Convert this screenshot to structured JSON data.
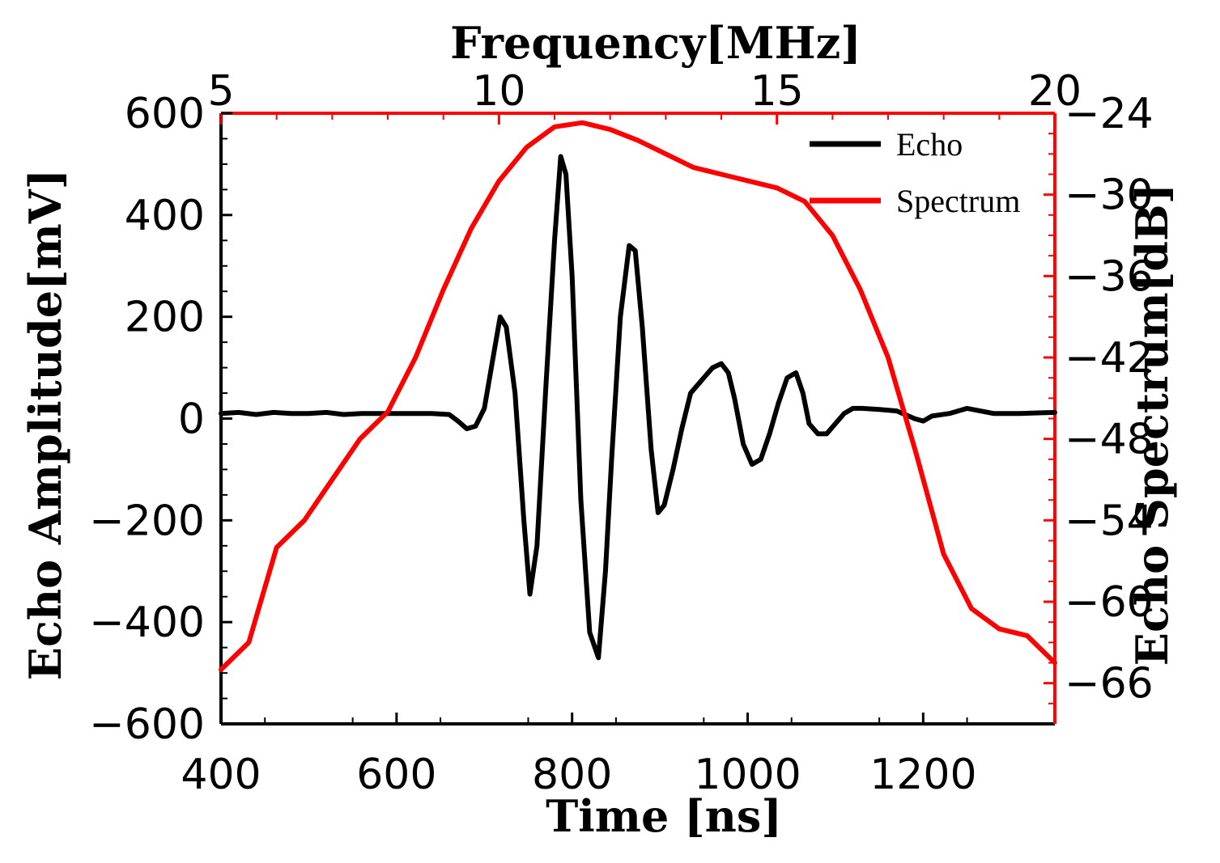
{
  "chart_data": {
    "type": "line",
    "title": "",
    "bottom_axis": {
      "label": "Time [ns]",
      "range": [
        400,
        1350
      ],
      "ticks": [
        400,
        600,
        800,
        1000,
        1200
      ],
      "tick_labels": [
        "400",
        "600",
        "800",
        "1000",
        "1200"
      ]
    },
    "top_axis": {
      "label": "Frequency[MHz]",
      "range": [
        5,
        20
      ],
      "ticks": [
        5,
        10,
        15,
        20
      ],
      "tick_labels": [
        "5",
        "10",
        "15",
        "20"
      ]
    },
    "left_axis": {
      "label": "Echo Amplitude[mV]",
      "range": [
        -600,
        600
      ],
      "ticks": [
        -600,
        -400,
        -200,
        0,
        200,
        400,
        600
      ],
      "tick_labels": [
        "−600",
        "−400",
        "−200",
        "0",
        "200",
        "400",
        "600"
      ]
    },
    "right_axis": {
      "label": "Echo Spectrum[dB]",
      "range": [
        -69,
        -24
      ],
      "ticks": [
        -24,
        -30,
        -36,
        -42,
        -48,
        -54,
        -60,
        -66
      ],
      "tick_labels": [
        "−24",
        "−30",
        "−36",
        "−42",
        "−48",
        "−54",
        "−60",
        "−66"
      ]
    },
    "legend": {
      "placement": "top-right",
      "entries": [
        {
          "name": "Echo",
          "color": "#000000"
        },
        {
          "name": "Spectrum",
          "color": "#ff0000"
        }
      ]
    },
    "series": [
      {
        "name": "Echo",
        "axes": "time-amplitude",
        "color": "#000000",
        "x": [
          400,
          420,
          440,
          460,
          480,
          500,
          520,
          540,
          560,
          580,
          600,
          620,
          640,
          660,
          670,
          680,
          690,
          700,
          710,
          718,
          725,
          735,
          745,
          752,
          760,
          770,
          780,
          787,
          793,
          800,
          810,
          820,
          830,
          838,
          845,
          855,
          865,
          872,
          880,
          890,
          898,
          905,
          915,
          925,
          935,
          945,
          950,
          960,
          970,
          978,
          985,
          995,
          1005,
          1015,
          1025,
          1035,
          1045,
          1055,
          1063,
          1070,
          1080,
          1090,
          1100,
          1110,
          1120,
          1130,
          1150,
          1170,
          1190,
          1200,
          1210,
          1230,
          1250,
          1280,
          1310,
          1350
        ],
        "y": [
          10,
          12,
          8,
          12,
          10,
          10,
          12,
          8,
          10,
          10,
          10,
          10,
          10,
          8,
          -5,
          -20,
          -15,
          20,
          120,
          200,
          180,
          50,
          -200,
          -345,
          -250,
          60,
          350,
          515,
          480,
          280,
          -160,
          -420,
          -470,
          -300,
          -80,
          200,
          340,
          330,
          180,
          -60,
          -185,
          -170,
          -100,
          -20,
          50,
          70,
          80,
          100,
          108,
          90,
          40,
          -50,
          -90,
          -80,
          -30,
          30,
          80,
          90,
          50,
          -10,
          -30,
          -30,
          -10,
          10,
          20,
          20,
          18,
          15,
          0,
          -5,
          5,
          10,
          20,
          10,
          10,
          12
        ]
      },
      {
        "name": "Spectrum",
        "axes": "frequency-spectrum",
        "color": "#ff0000",
        "x": [
          5.0,
          5.5,
          6.0,
          6.5,
          7.0,
          7.5,
          8.0,
          8.5,
          9.0,
          9.5,
          10.0,
          10.5,
          11.0,
          11.5,
          12.0,
          12.5,
          13.0,
          13.5,
          14.0,
          14.5,
          15.0,
          15.5,
          16.0,
          16.5,
          17.0,
          17.5,
          18.0,
          18.5,
          19.0,
          19.5,
          20.0
        ],
        "y": [
          -65,
          -63,
          -56,
          -54,
          -51,
          -48,
          -46,
          -42,
          -37,
          -32.5,
          -29,
          -26.5,
          -25,
          -24.7,
          -25.2,
          -26,
          -27,
          -28,
          -28.5,
          -29,
          -29.5,
          -30.5,
          -33,
          -37,
          -42,
          -49,
          -56.5,
          -60.5,
          -62,
          -62.5,
          -64.5
        ]
      }
    ]
  }
}
